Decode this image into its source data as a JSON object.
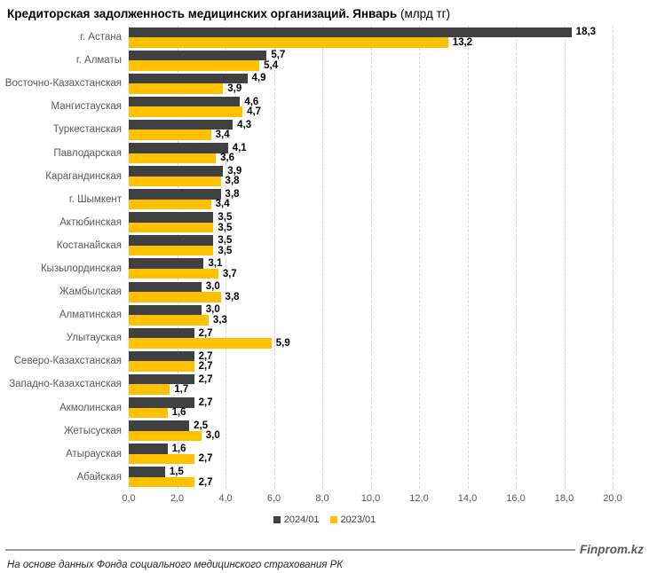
{
  "title": {
    "main": "Кредиторская задолженность медицинских организаций. Январь",
    "unit": " (млрд тг)"
  },
  "chart_data": {
    "type": "bar",
    "orientation": "horizontal",
    "title": "Кредиторская задолженность медицинских организаций. Январь (млрд тг)",
    "categories": [
      "г. Астана",
      "г. Алматы",
      "Восточно-Казахстанская",
      "Мангистауская",
      "Туркестанская",
      "Павлодарская",
      "Карагандинская",
      "г. Шымкент",
      "Актюбинская",
      "Костанайская",
      "Кызылординская",
      "Жамбылская",
      "Алматинская",
      "Улытауская",
      "Северо-Казахстанская",
      "Западно-Казахстанская",
      "Акмолинская",
      "Жетысуская",
      "Атырауская",
      "Абайская"
    ],
    "series": [
      {
        "name": "2024/01",
        "color": "#404040",
        "values": [
          18.3,
          5.7,
          4.9,
          4.6,
          4.3,
          4.1,
          3.9,
          3.8,
          3.5,
          3.5,
          3.1,
          3.0,
          3.0,
          2.7,
          2.7,
          2.7,
          2.7,
          2.5,
          1.6,
          1.5
        ]
      },
      {
        "name": "2023/01",
        "color": "#FFC000",
        "values": [
          13.2,
          5.4,
          3.9,
          4.7,
          3.4,
          3.6,
          3.8,
          3.4,
          3.5,
          3.5,
          3.7,
          3.8,
          3.3,
          5.9,
          2.7,
          1.7,
          1.6,
          3.0,
          2.7,
          2.7
        ]
      }
    ],
    "xlim": [
      0,
      20
    ],
    "xticks": [
      "0,0",
      "2,0",
      "4,0",
      "6,0",
      "8,0",
      "10,0",
      "12,0",
      "14,0",
      "16,0",
      "18,0",
      "20,0"
    ],
    "grid": "vertical-dashed",
    "gridline_color": "#d9d9d9",
    "legend_position": "bottom",
    "value_label_format": "decimal-comma"
  },
  "footer": {
    "source": "На основе данных Фонда социального медицинского страхования РК",
    "brand": "Finprom.kz"
  }
}
